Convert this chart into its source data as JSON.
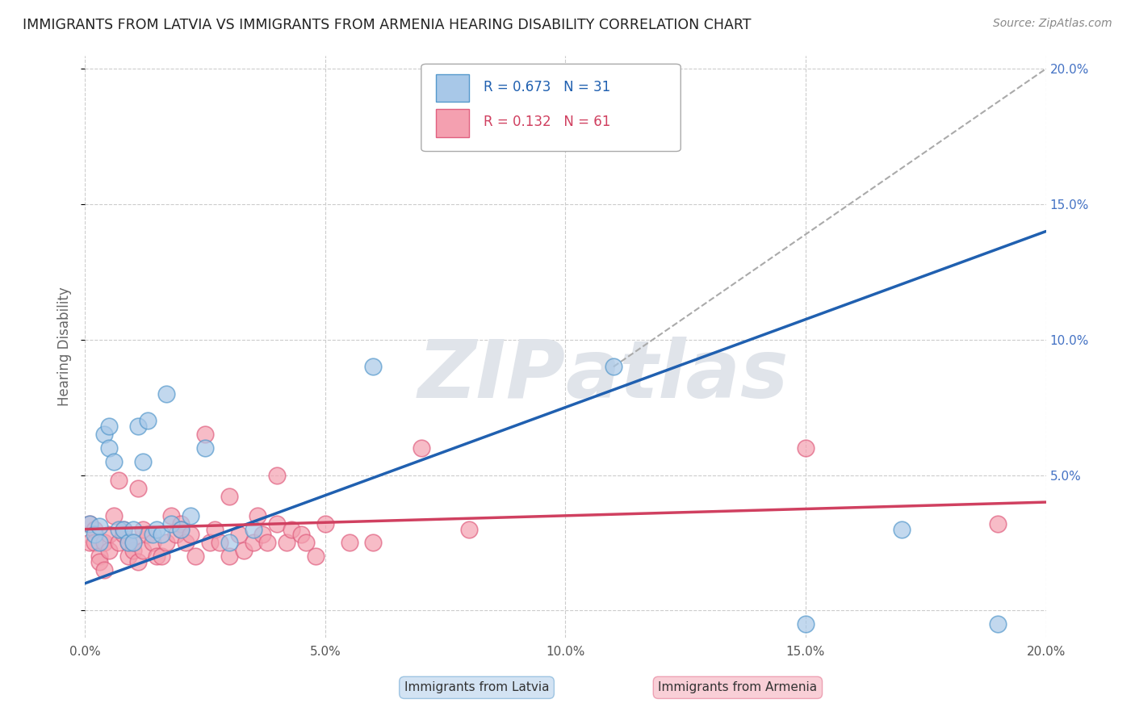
{
  "title": "IMMIGRANTS FROM LATVIA VS IMMIGRANTS FROM ARMENIA HEARING DISABILITY CORRELATION CHART",
  "source": "Source: ZipAtlas.com",
  "ylabel": "Hearing Disability",
  "legend1_label": "Immigrants from Latvia",
  "legend1_R": "R = 0.673",
  "legend1_N": "N = 31",
  "legend2_label": "Immigrants from Armenia",
  "legend2_R": "R = 0.132",
  "legend2_N": "N = 61",
  "xlim": [
    0.0,
    0.2
  ],
  "ylim": [
    -0.01,
    0.205
  ],
  "xticks": [
    0.0,
    0.05,
    0.1,
    0.15,
    0.2
  ],
  "yticks": [
    0.0,
    0.05,
    0.1,
    0.15,
    0.2
  ],
  "xtick_labels": [
    "0.0%",
    "5.0%",
    "10.0%",
    "15.0%",
    "20.0%"
  ],
  "right_ytick_labels": [
    "",
    "5.0%",
    "10.0%",
    "15.0%",
    "20.0%"
  ],
  "blue_color": "#a8c8e8",
  "pink_color": "#f4a0b0",
  "blue_edge_color": "#5599cc",
  "pink_edge_color": "#e06080",
  "blue_line_color": "#2060b0",
  "pink_line_color": "#d04060",
  "blue_scatter": [
    [
      0.001,
      0.032
    ],
    [
      0.002,
      0.028
    ],
    [
      0.003,
      0.031
    ],
    [
      0.003,
      0.025
    ],
    [
      0.004,
      0.065
    ],
    [
      0.005,
      0.068
    ],
    [
      0.005,
      0.06
    ],
    [
      0.006,
      0.055
    ],
    [
      0.007,
      0.03
    ],
    [
      0.008,
      0.03
    ],
    [
      0.009,
      0.025
    ],
    [
      0.01,
      0.03
    ],
    [
      0.01,
      0.025
    ],
    [
      0.011,
      0.068
    ],
    [
      0.012,
      0.055
    ],
    [
      0.013,
      0.07
    ],
    [
      0.014,
      0.028
    ],
    [
      0.015,
      0.03
    ],
    [
      0.016,
      0.028
    ],
    [
      0.017,
      0.08
    ],
    [
      0.018,
      0.032
    ],
    [
      0.02,
      0.03
    ],
    [
      0.022,
      0.035
    ],
    [
      0.025,
      0.06
    ],
    [
      0.03,
      0.025
    ],
    [
      0.035,
      0.03
    ],
    [
      0.06,
      0.09
    ],
    [
      0.11,
      0.09
    ],
    [
      0.15,
      -0.005
    ],
    [
      0.17,
      0.03
    ],
    [
      0.19,
      -0.005
    ]
  ],
  "pink_scatter": [
    [
      0.001,
      0.032
    ],
    [
      0.001,
      0.025
    ],
    [
      0.002,
      0.03
    ],
    [
      0.002,
      0.025
    ],
    [
      0.003,
      0.02
    ],
    [
      0.003,
      0.018
    ],
    [
      0.004,
      0.015
    ],
    [
      0.004,
      0.025
    ],
    [
      0.005,
      0.028
    ],
    [
      0.005,
      0.022
    ],
    [
      0.006,
      0.035
    ],
    [
      0.007,
      0.048
    ],
    [
      0.007,
      0.025
    ],
    [
      0.008,
      0.03
    ],
    [
      0.008,
      0.028
    ],
    [
      0.009,
      0.02
    ],
    [
      0.009,
      0.025
    ],
    [
      0.01,
      0.022
    ],
    [
      0.01,
      0.025
    ],
    [
      0.011,
      0.018
    ],
    [
      0.011,
      0.045
    ],
    [
      0.012,
      0.03
    ],
    [
      0.012,
      0.022
    ],
    [
      0.013,
      0.028
    ],
    [
      0.014,
      0.025
    ],
    [
      0.015,
      0.02
    ],
    [
      0.016,
      0.02
    ],
    [
      0.017,
      0.025
    ],
    [
      0.018,
      0.035
    ],
    [
      0.019,
      0.028
    ],
    [
      0.02,
      0.032
    ],
    [
      0.02,
      0.03
    ],
    [
      0.021,
      0.025
    ],
    [
      0.022,
      0.028
    ],
    [
      0.023,
      0.02
    ],
    [
      0.025,
      0.065
    ],
    [
      0.026,
      0.025
    ],
    [
      0.027,
      0.03
    ],
    [
      0.028,
      0.025
    ],
    [
      0.03,
      0.042
    ],
    [
      0.03,
      0.02
    ],
    [
      0.032,
      0.028
    ],
    [
      0.033,
      0.022
    ],
    [
      0.035,
      0.025
    ],
    [
      0.036,
      0.035
    ],
    [
      0.037,
      0.028
    ],
    [
      0.038,
      0.025
    ],
    [
      0.04,
      0.032
    ],
    [
      0.04,
      0.05
    ],
    [
      0.042,
      0.025
    ],
    [
      0.043,
      0.03
    ],
    [
      0.045,
      0.028
    ],
    [
      0.046,
      0.025
    ],
    [
      0.048,
      0.02
    ],
    [
      0.05,
      0.032
    ],
    [
      0.055,
      0.025
    ],
    [
      0.06,
      0.025
    ],
    [
      0.07,
      0.06
    ],
    [
      0.08,
      0.03
    ],
    [
      0.15,
      0.06
    ],
    [
      0.19,
      0.032
    ]
  ],
  "blue_trendline": [
    0.0,
    0.01,
    0.2,
    0.14
  ],
  "pink_trendline": [
    0.0,
    0.03,
    0.2,
    0.04
  ],
  "dashed_line": [
    0.11,
    0.09,
    0.2,
    0.2
  ],
  "background_color": "#ffffff",
  "grid_color": "#cccccc",
  "watermark_color": "#e0e4ea",
  "axis_label_color": "#4472c4",
  "title_color": "#222222",
  "source_color": "#888888"
}
